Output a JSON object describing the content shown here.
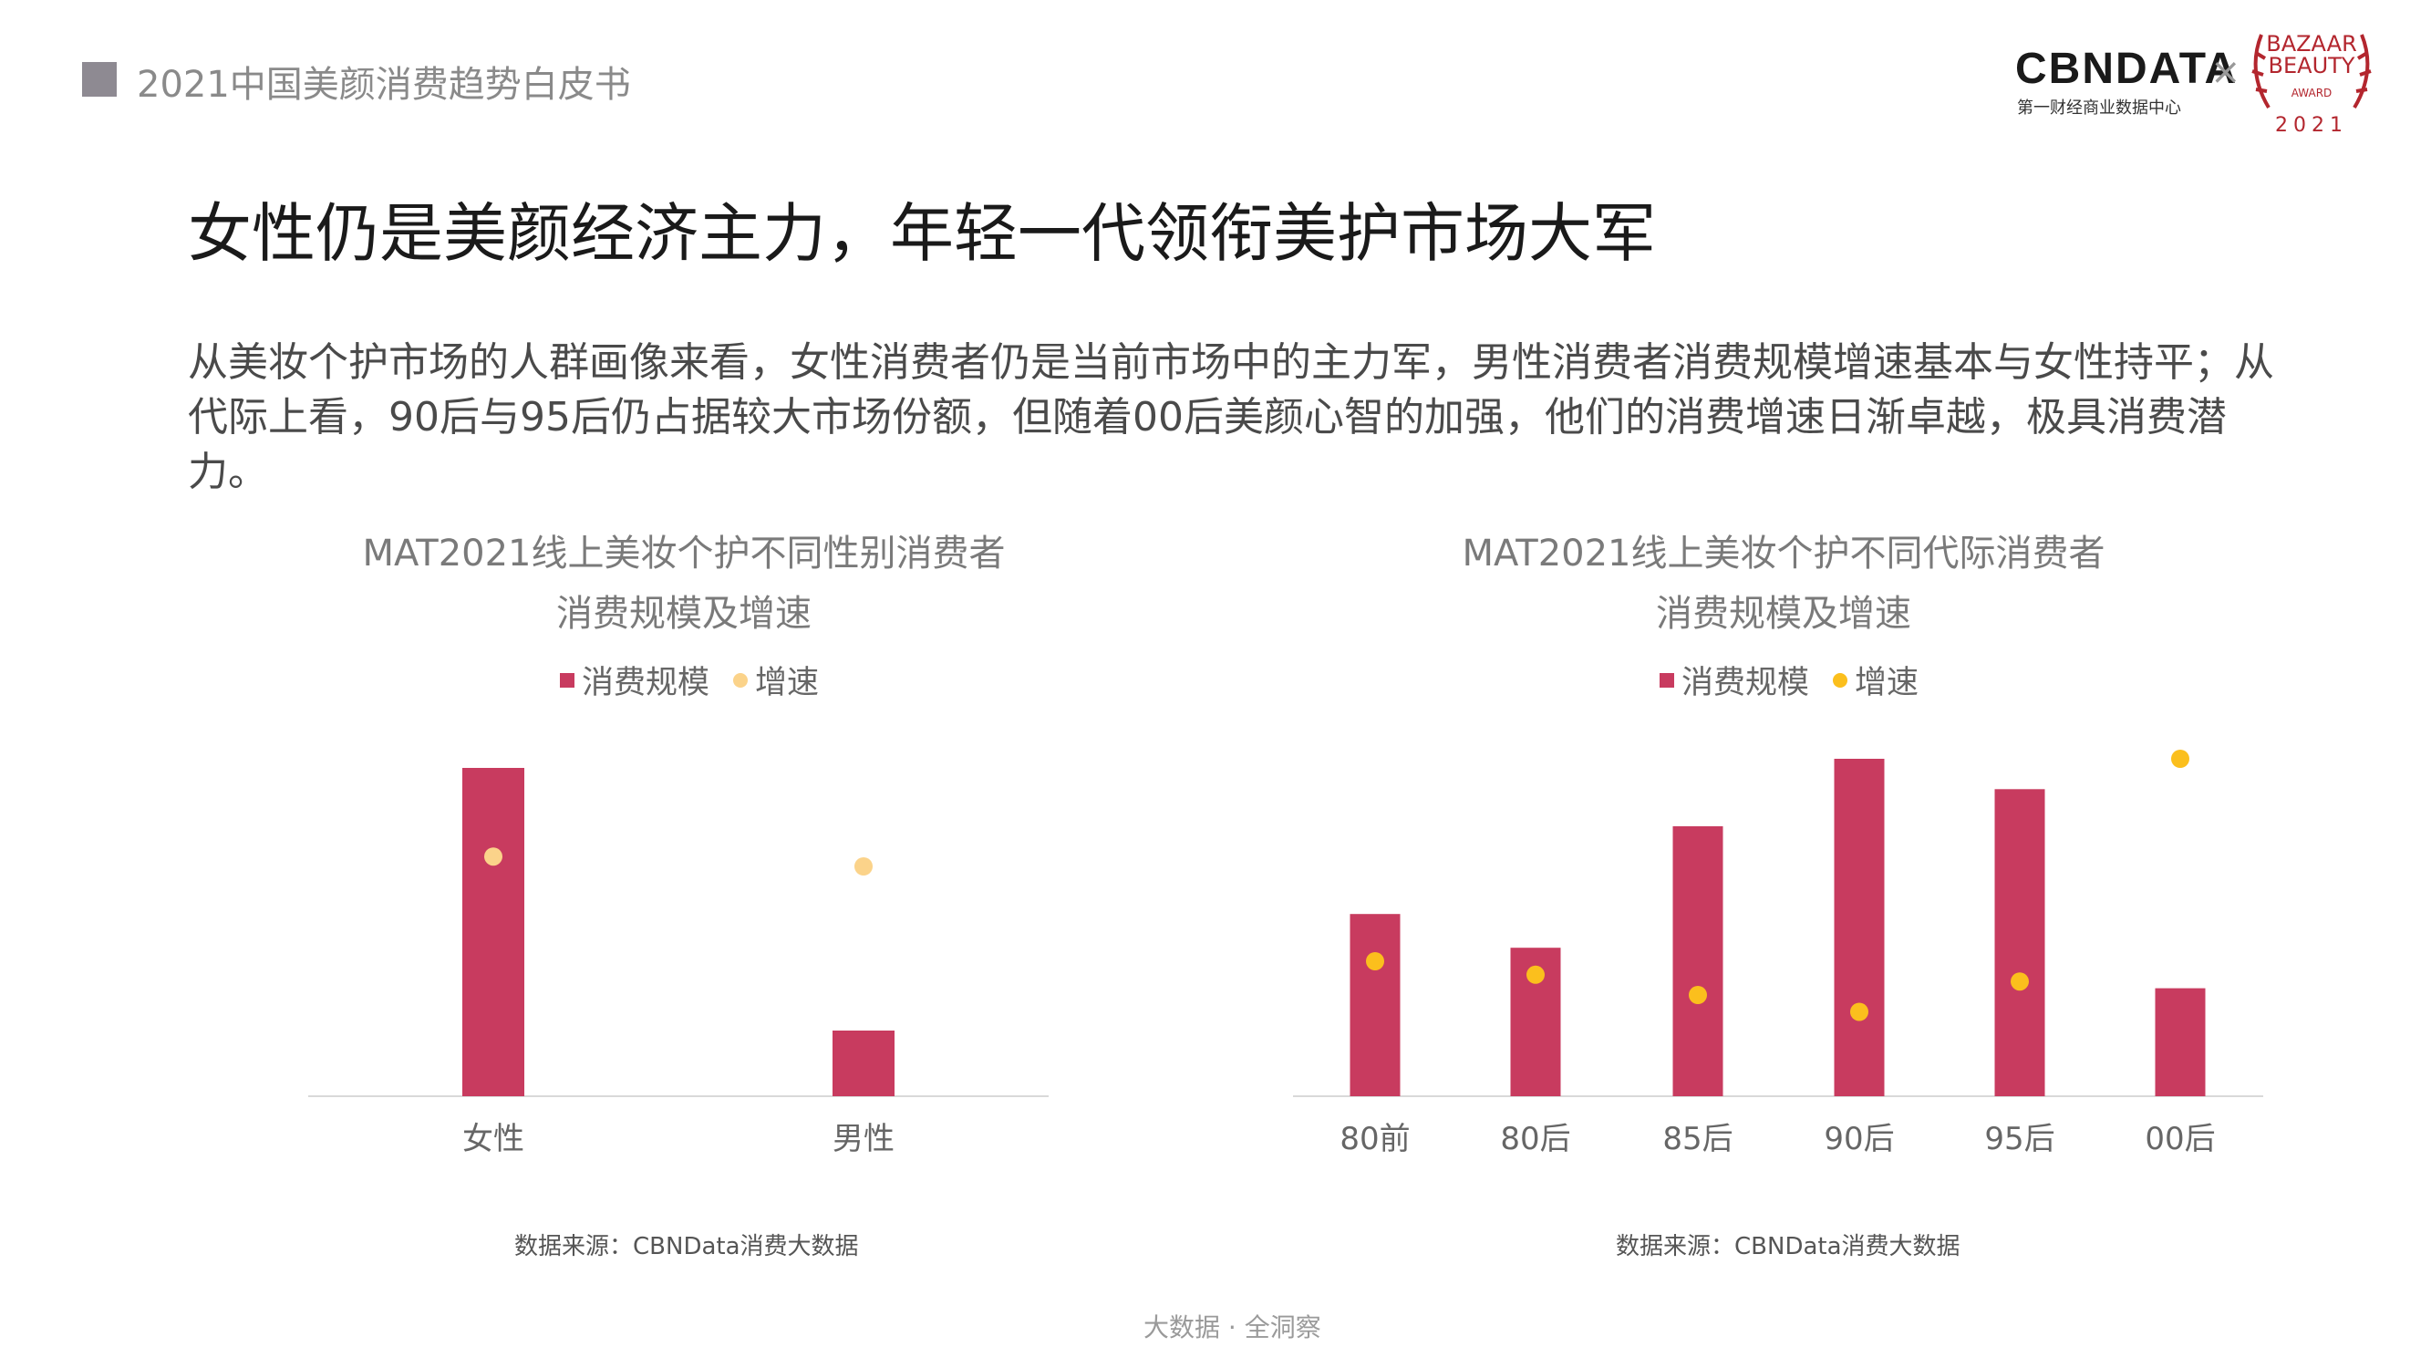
{
  "header": {
    "report_title": "2021中国美颜消费趋势白皮书"
  },
  "logos": {
    "cbn": "CBΝDATA",
    "cbn_sub": "第一财经商业数据中心",
    "times": "×",
    "bazaar_line1": "BAZAAR",
    "bazaar_line2": "BEAUTY",
    "bazaar_award": "AWARD",
    "bazaar_year": "2021"
  },
  "main_title": "女性仍是美颜经济主力，年轻一代领衔美护市场大军",
  "body_text": "从美妆个护市场的人群画像来看，女性消费者仍是当前市场中的主力军，男性消费者消费规模增速基本与女性持平；从代际上看，90后与95后仍占据较大市场份额，但随着00后美颜心智的加强，他们的消费增速日渐卓越，极具消费潜力。",
  "footer": "大数据 · 全洞察",
  "colors": {
    "bar": "#c83b5f",
    "dot_gender": "#fbd38a",
    "dot_generation": "#fbbf1d",
    "axis": "#d9d9d9"
  },
  "chart_data": [
    {
      "type": "bar",
      "title_line1": "MAT2021线上美妆个护不同性别消费者",
      "title_line2": "消费规模及增速",
      "legend": [
        "消费规模",
        "增速"
      ],
      "categories": [
        "女性",
        "男性"
      ],
      "series": [
        {
          "name": "消费规模",
          "type": "bar",
          "values": [
            100,
            20
          ]
        },
        {
          "name": "增速",
          "type": "scatter",
          "values": [
            73,
            70
          ]
        }
      ],
      "ylim": [
        0,
        100
      ],
      "source": "数据来源：CBNData消费大数据"
    },
    {
      "type": "bar",
      "title_line1": "MAT2021线上美妆个护不同代际消费者",
      "title_line2": "消费规模及增速",
      "legend": [
        "消费规模",
        "增速"
      ],
      "categories": [
        "80前",
        "80后",
        "85后",
        "90后",
        "95后",
        "00后"
      ],
      "series": [
        {
          "name": "消费规模",
          "type": "bar",
          "values": [
            54,
            44,
            80,
            100,
            91,
            32
          ]
        },
        {
          "name": "增速",
          "type": "scatter",
          "values": [
            40,
            36,
            30,
            25,
            34,
            100
          ]
        }
      ],
      "ylim": [
        0,
        100
      ],
      "source": "数据来源：CBNData消费大数据"
    }
  ]
}
